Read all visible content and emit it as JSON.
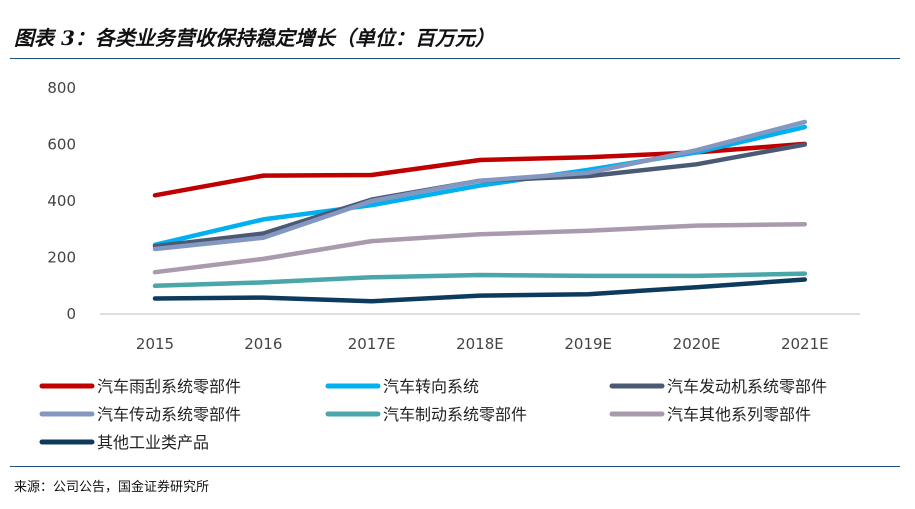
{
  "title": "图表 3：各类业务营收保持稳定增长（单位：百万元）",
  "source": "来源：公司公告，国金证券研究所",
  "chart_data": {
    "type": "line",
    "categories": [
      "2015",
      "2016",
      "2017E",
      "2018E",
      "2019E",
      "2020E",
      "2021E"
    ],
    "ylim": [
      0,
      800
    ],
    "yticks": [
      0,
      200,
      400,
      600,
      800
    ],
    "grid": false,
    "legend_position": "bottom",
    "series": [
      {
        "name": "汽车雨刮系统零部件",
        "color": "#c00000",
        "values": [
          420,
          490,
          492,
          545,
          555,
          572,
          602
        ]
      },
      {
        "name": "汽车转向系统",
        "color": "#00b0f0",
        "values": [
          245,
          335,
          385,
          455,
          510,
          572,
          662
        ]
      },
      {
        "name": "汽车发动机系统零部件",
        "color": "#4a5a75",
        "values": [
          240,
          285,
          405,
          472,
          488,
          530,
          600
        ]
      },
      {
        "name": "汽车传动系统零部件",
        "color": "#8497c0",
        "values": [
          230,
          270,
          400,
          472,
          500,
          580,
          680
        ]
      },
      {
        "name": "汽车制动系统零部件",
        "color": "#4aa6a8",
        "values": [
          100,
          112,
          130,
          138,
          135,
          135,
          143
        ]
      },
      {
        "name": "汽车其他系列零部件",
        "color": "#a99aad",
        "values": [
          148,
          195,
          258,
          282,
          295,
          313,
          318
        ]
      },
      {
        "name": "其他工业类产品",
        "color": "#0d3b5e",
        "values": [
          55,
          58,
          45,
          65,
          70,
          95,
          122
        ]
      }
    ]
  }
}
